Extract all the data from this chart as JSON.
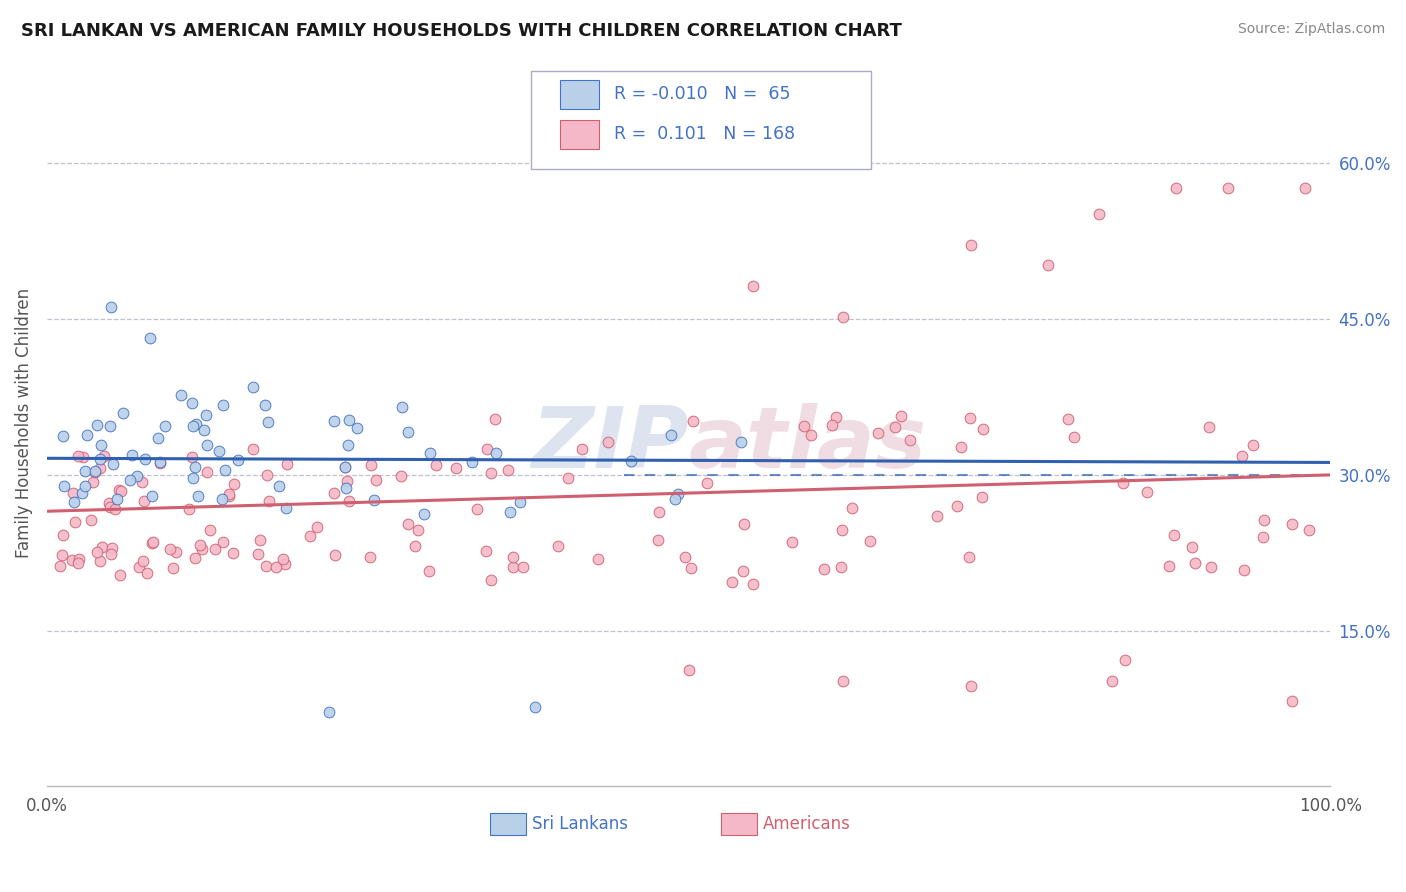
{
  "title": "SRI LANKAN VS AMERICAN FAMILY HOUSEHOLDS WITH CHILDREN CORRELATION CHART",
  "source": "Source: ZipAtlas.com",
  "ylabel": "Family Households with Children",
  "xlim": [
    0,
    1.0
  ],
  "ylim": [
    0.0,
    0.7
  ],
  "y_tick_vals_right": [
    0.15,
    0.3,
    0.45,
    0.6
  ],
  "sri_lankan_fill": "#b8d0e8",
  "sri_lankan_edge": "#4472c4",
  "american_fill": "#f4b8c8",
  "american_edge": "#d06070",
  "sri_line_color": "#3060b0",
  "amer_line_color": "#d06070",
  "grid_color": "#c0c0d0",
  "R_sri": -0.01,
  "N_sri": 65,
  "R_amer": 0.101,
  "N_amer": 168,
  "legend_text_color": "#4472c4",
  "watermark": "ZIPatlas"
}
